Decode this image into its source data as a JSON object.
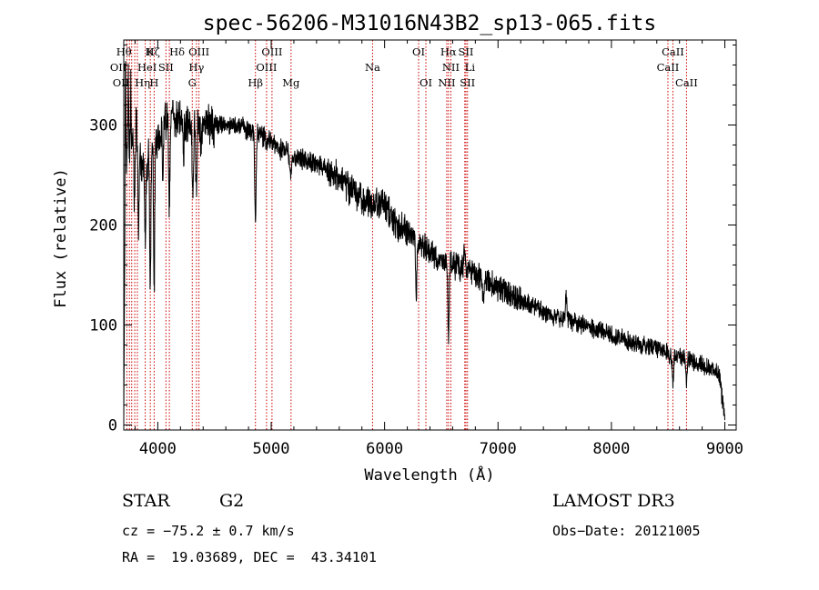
{
  "chart_data": {
    "type": "line",
    "title": "spec-56206-M31016N43B2_sp13-065.fits",
    "xlabel": "Wavelength (Å)",
    "ylabel": "Flux (relative)",
    "xlim": [
      3700,
      9100
    ],
    "ylim": [
      -5,
      385
    ],
    "xticks": [
      4000,
      5000,
      6000,
      7000,
      8000,
      9000
    ],
    "yticks": [
      0,
      100,
      200,
      300
    ],
    "grid": false,
    "line_color": "#000000",
    "marker_color": "#cc0000",
    "continuum": {
      "x": [
        3700,
        3750,
        3800,
        3850,
        3900,
        3950,
        4000,
        4050,
        4100,
        4150,
        4200,
        4300,
        4400,
        4500,
        4600,
        4700,
        4800,
        4900,
        5000,
        5100,
        5200,
        5300,
        5400,
        5500,
        5600,
        5700,
        5800,
        5900,
        6000,
        6100,
        6200,
        6300,
        6400,
        6500,
        6600,
        6700,
        6800,
        6900,
        7000,
        7200,
        7400,
        7600,
        7800,
        8000,
        8200,
        8400,
        8600,
        8800,
        8900,
        8950,
        9000
      ],
      "y": [
        245,
        285,
        280,
        260,
        265,
        275,
        285,
        300,
        310,
        305,
        302,
        300,
        305,
        300,
        300,
        300,
        295,
        290,
        283,
        275,
        268,
        265,
        262,
        255,
        245,
        235,
        228,
        222,
        220,
        200,
        195,
        183,
        173,
        165,
        160,
        155,
        150,
        145,
        137,
        125,
        113,
        105,
        98,
        90,
        82,
        76,
        68,
        60,
        55,
        50,
        5
      ]
    },
    "absorption_features": [
      {
        "x": 3795,
        "depth": 60,
        "width": 4
      },
      {
        "x": 3830,
        "depth": 80,
        "width": 4
      },
      {
        "x": 3890,
        "depth": 70,
        "width": 5
      },
      {
        "x": 3933,
        "depth": 140,
        "width": 5
      },
      {
        "x": 3968,
        "depth": 150,
        "width": 5
      },
      {
        "x": 4045,
        "depth": 45,
        "width": 5
      },
      {
        "x": 4101,
        "depth": 85,
        "width": 6
      },
      {
        "x": 4227,
        "depth": 30,
        "width": 5
      },
      {
        "x": 4310,
        "depth": 70,
        "width": 6
      },
      {
        "x": 4340,
        "depth": 80,
        "width": 5
      },
      {
        "x": 4383,
        "depth": 25,
        "width": 5
      },
      {
        "x": 4861,
        "depth": 85,
        "width": 6
      },
      {
        "x": 5170,
        "depth": 20,
        "width": 8
      },
      {
        "x": 5890,
        "depth": 12,
        "width": 6
      },
      {
        "x": 6280,
        "depth": 55,
        "width": 6
      },
      {
        "x": 6563,
        "depth": 70,
        "width": 6
      },
      {
        "x": 6870,
        "depth": 20,
        "width": 8
      },
      {
        "x": 8542,
        "depth": 25,
        "width": 6
      },
      {
        "x": 8662,
        "depth": 22,
        "width": 6
      }
    ],
    "emission_features": [
      {
        "x": 3715,
        "height": 110,
        "width": 3
      },
      {
        "x": 3740,
        "height": 80,
        "width": 3
      },
      {
        "x": 3762,
        "height": 60,
        "width": 3
      },
      {
        "x": 3810,
        "height": 40,
        "width": 4
      },
      {
        "x": 6705,
        "height": 25,
        "width": 6
      },
      {
        "x": 7600,
        "height": 25,
        "width": 6
      }
    ],
    "noise": [
      {
        "from": 3700,
        "to": 4500,
        "amp": 16
      },
      {
        "from": 4500,
        "to": 5500,
        "amp": 8
      },
      {
        "from": 5500,
        "to": 6200,
        "amp": 12
      },
      {
        "from": 6200,
        "to": 7200,
        "amp": 10
      },
      {
        "from": 7200,
        "to": 9000,
        "amp": 7
      }
    ],
    "spectral_lines": [
      {
        "x": 3727,
        "label": "OII",
        "row": 2,
        "align": "end"
      },
      {
        "x": 3750,
        "label": "OII",
        "row": 3,
        "align": "end"
      },
      {
        "x": 3770,
        "label": "Hθ",
        "row": 1,
        "align": "end"
      },
      {
        "x": 3797,
        "label": "Hη",
        "row": 3,
        "align": "start"
      },
      {
        "x": 3820,
        "label": "HeI",
        "row": 2,
        "align": "start"
      },
      {
        "x": 3889,
        "label": "Hζ",
        "row": 1,
        "align": "start"
      },
      {
        "x": 3934,
        "label": "K",
        "row": 1,
        "align": "middle"
      },
      {
        "x": 3968,
        "label": "H",
        "row": 3,
        "align": "middle"
      },
      {
        "x": 4072,
        "label": "SII",
        "row": 2,
        "align": "middle"
      },
      {
        "x": 4102,
        "label": "Hδ",
        "row": 1,
        "align": "start"
      },
      {
        "x": 4304,
        "label": "G",
        "row": 3,
        "align": "middle"
      },
      {
        "x": 4341,
        "label": "Hγ",
        "row": 2,
        "align": "middle"
      },
      {
        "x": 4363,
        "label": "OIII",
        "row": 1,
        "align": "middle"
      },
      {
        "x": 4861,
        "label": "Hβ",
        "row": 3,
        "align": "middle"
      },
      {
        "x": 4959,
        "label": "OIII",
        "row": 2,
        "align": "middle"
      },
      {
        "x": 5007,
        "label": "OIII",
        "row": 1,
        "align": "middle"
      },
      {
        "x": 5175,
        "label": "Mg",
        "row": 3,
        "align": "middle"
      },
      {
        "x": 5894,
        "label": "Na",
        "row": 2,
        "align": "middle"
      },
      {
        "x": 6300,
        "label": "OI",
        "row": 1,
        "align": "middle"
      },
      {
        "x": 6364,
        "label": "OI",
        "row": 3,
        "align": "middle"
      },
      {
        "x": 6548,
        "label": "NII",
        "row": 3,
        "align": "middle"
      },
      {
        "x": 6563,
        "label": "Hα",
        "row": 1,
        "align": "middle"
      },
      {
        "x": 6584,
        "label": "NII",
        "row": 2,
        "align": "middle"
      },
      {
        "x": 6707,
        "label": "Li",
        "row": 2,
        "align": "start"
      },
      {
        "x": 6717,
        "label": "SII",
        "row": 1,
        "align": "middle"
      },
      {
        "x": 6731,
        "label": "SII",
        "row": 3,
        "align": "middle"
      },
      {
        "x": 8498,
        "label": "CaII",
        "row": 2,
        "align": "middle"
      },
      {
        "x": 8542,
        "label": "CaII",
        "row": 1,
        "align": "middle"
      },
      {
        "x": 8662,
        "label": "CaII",
        "row": 3,
        "align": "middle"
      }
    ]
  },
  "info": {
    "class": "STAR",
    "subclass": "G2",
    "survey": "LAMOST DR3",
    "cz": "cz = −75.2 ± 0.7 km/s",
    "obs_date": "Obs−Date: 20121005",
    "coords": "RA =  19.03689, DEC =  43.34101"
  }
}
